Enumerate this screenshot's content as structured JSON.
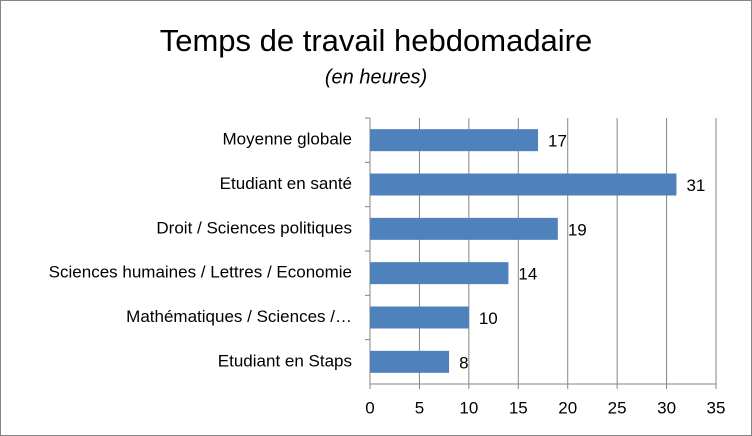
{
  "chart_data": {
    "type": "bar",
    "orientation": "horizontal",
    "title": "Temps de travail hebdomadaire",
    "subtitle": "(en heures)",
    "categories": [
      "Moyenne globale",
      "Etudiant en santé",
      "Droit / Sciences politiques",
      "Sciences humaines / Lettres / Economie",
      "Mathématiques / Sciences /…",
      "Etudiant en Staps"
    ],
    "values": [
      17,
      31,
      19,
      14,
      10,
      8
    ],
    "color": "#4f81bd",
    "xlim": [
      0,
      35
    ],
    "xticks": [
      0,
      5,
      10,
      15,
      20,
      25,
      30,
      35
    ],
    "grid": true
  }
}
